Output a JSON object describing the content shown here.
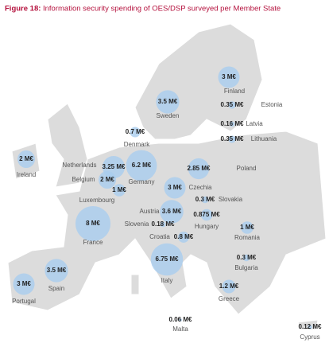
{
  "chart_data": {
    "type": "bubble-map",
    "title_label": "Figure 18:",
    "title": "Information security spending of OES/DSP surveyed per Member State",
    "color": "#a9cdef",
    "categories": [
      "Finland",
      "Sweden",
      "Estonia",
      "Denmark",
      "Latvia",
      "Lithuania",
      "Ireland",
      "Netherlands",
      "Germany",
      "Poland",
      "Belgium",
      "Luxembourg",
      "Czechia",
      "Slovakia",
      "Austria",
      "Hungary",
      "France",
      "Slovenia",
      "Croatia",
      "Romania",
      "Portugal",
      "Spain",
      "Italy",
      "Bulgaria",
      "Greece",
      "Malta",
      "Cyprus"
    ],
    "values": [
      3,
      3.5,
      0.35,
      0.7,
      0.16,
      0.35,
      2,
      3.25,
      6.2,
      2.85,
      2,
      1,
      3,
      0.3,
      3.6,
      0.875,
      8,
      0.18,
      0.8,
      1,
      3,
      3.5,
      6.75,
      0.3,
      1.2,
      0.06,
      0.12
    ],
    "value_labels": [
      "3 M€",
      "3.5 M€",
      "0.35 M€",
      "0.7 M€",
      "0.16 M€",
      "0.35 M€",
      "2 M€",
      "3.25 M€",
      "6.2 M€",
      "2.85 M€",
      "2 M€",
      "1 M€",
      "3 M€",
      "0.3 M€",
      "3.6 M€",
      "0.875 M€",
      "8 M€",
      "0.18 M€",
      "0.8 M€",
      "1 M€",
      "3 M€",
      "3.5 M€",
      "6.75 M€",
      "0.3 M€",
      "1.2 M€",
      "0.06 M€",
      "0.12 M€"
    ]
  }
}
